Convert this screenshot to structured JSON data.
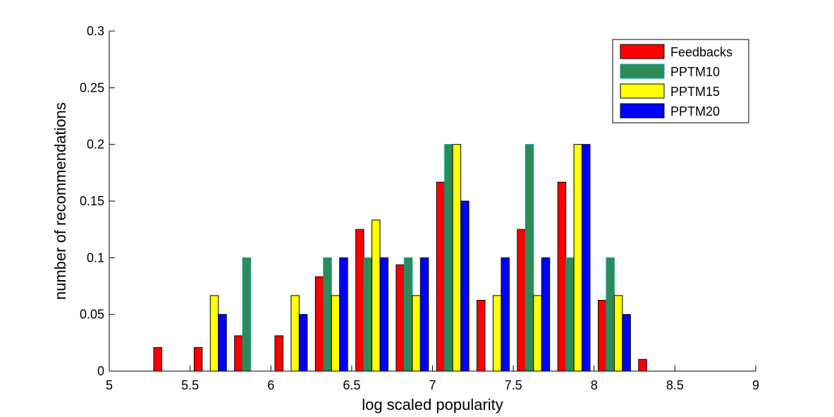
{
  "chart_data": {
    "type": "bar",
    "title": "",
    "xlabel": "log scaled popularity",
    "ylabel": "number of recommendations",
    "xlim": [
      5,
      9
    ],
    "ylim": [
      0,
      0.3
    ],
    "x_ticks": [
      5,
      5.5,
      6,
      6.5,
      7,
      7.5,
      8,
      8.5,
      9
    ],
    "x_tick_labels": [
      "5",
      "5.5",
      "6",
      "6.5",
      "7",
      "7.5",
      "8",
      "8.5",
      "9"
    ],
    "y_ticks": [
      0,
      0.05,
      0.1,
      0.15,
      0.2,
      0.25,
      0.3
    ],
    "y_tick_labels": [
      "0",
      "0.05",
      "0.1",
      "0.15",
      "0.2",
      "0.25",
      "0.3"
    ],
    "grid": false,
    "legend_position": "top-right",
    "categories": [
      5.125,
      5.375,
      5.625,
      5.875,
      6.125,
      6.375,
      6.625,
      6.875,
      7.125,
      7.375,
      7.625,
      7.875,
      8.125,
      8.375,
      8.625,
      8.875
    ],
    "series": [
      {
        "name": "Feedbacks",
        "color": "#ff0000",
        "values": [
          0,
          0.0208,
          0.0208,
          0.0312,
          0.0312,
          0.0833,
          0.125,
          0.0938,
          0.1667,
          0.0625,
          0.125,
          0.1667,
          0.0625,
          0.0104,
          0,
          0
        ]
      },
      {
        "name": "PPTM10",
        "color": "#2e8b57",
        "edge_color": "#00a0a0",
        "values": [
          0,
          0,
          0,
          0.1,
          0,
          0.1,
          0.1,
          0.1,
          0.2,
          0,
          0.2,
          0.1,
          0.1,
          0,
          0,
          0
        ]
      },
      {
        "name": "PPTM15",
        "color": "#ffff00",
        "values": [
          0,
          0,
          0.0667,
          0,
          0.0667,
          0.0667,
          0.1333,
          0.0667,
          0.2,
          0.0667,
          0.0667,
          0.2,
          0.0667,
          0,
          0,
          0
        ]
      },
      {
        "name": "PPTM20",
        "color": "#0000ff",
        "values": [
          0,
          0,
          0.05,
          0,
          0.05,
          0.1,
          0.1,
          0.1,
          0.15,
          0.1,
          0.1,
          0.2,
          0.05,
          0,
          0,
          0
        ]
      }
    ]
  }
}
